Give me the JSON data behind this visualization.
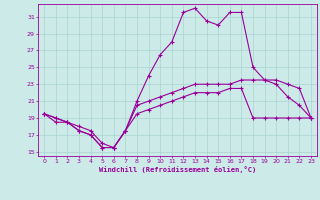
{
  "xlabel": "Windchill (Refroidissement éolien,°C)",
  "bg_color": "#cceae8",
  "line_color": "#990099",
  "grid_color": "#aad4d0",
  "xlim": [
    -0.5,
    23.5
  ],
  "ylim": [
    14.5,
    32.5
  ],
  "xticks": [
    0,
    1,
    2,
    3,
    4,
    5,
    6,
    7,
    8,
    9,
    10,
    11,
    12,
    13,
    14,
    15,
    16,
    17,
    18,
    19,
    20,
    21,
    22,
    23
  ],
  "yticks": [
    15,
    17,
    19,
    21,
    23,
    25,
    27,
    29,
    31
  ],
  "series1_x": [
    0,
    1,
    2,
    3,
    4,
    5,
    6,
    7,
    8,
    9,
    10,
    11,
    12,
    13,
    14,
    15,
    16,
    17,
    18,
    19,
    20,
    21,
    22,
    23
  ],
  "series1_y": [
    19.5,
    19.0,
    18.5,
    17.5,
    17.0,
    15.5,
    15.5,
    17.5,
    21.0,
    24.0,
    26.5,
    28.0,
    31.5,
    32.0,
    30.5,
    30.0,
    31.5,
    31.5,
    25.0,
    23.5,
    23.0,
    21.5,
    20.5,
    19.0
  ],
  "series2_x": [
    0,
    1,
    2,
    3,
    4,
    5,
    6,
    7,
    8,
    9,
    10,
    11,
    12,
    13,
    14,
    15,
    16,
    17,
    18,
    19,
    20,
    21,
    22,
    23
  ],
  "series2_y": [
    19.5,
    19.0,
    18.5,
    17.5,
    17.0,
    15.5,
    15.5,
    17.5,
    20.5,
    21.0,
    21.5,
    22.0,
    22.5,
    23.0,
    23.0,
    23.0,
    23.0,
    23.5,
    23.5,
    23.5,
    23.5,
    23.0,
    22.5,
    19.0
  ],
  "series3_x": [
    0,
    1,
    2,
    3,
    4,
    5,
    6,
    7,
    8,
    9,
    10,
    11,
    12,
    13,
    14,
    15,
    16,
    17,
    18,
    19,
    20,
    21,
    22,
    23
  ],
  "series3_y": [
    19.5,
    18.5,
    18.5,
    18.0,
    17.5,
    16.0,
    15.5,
    17.5,
    19.5,
    20.0,
    20.5,
    21.0,
    21.5,
    22.0,
    22.0,
    22.0,
    22.5,
    22.5,
    19.0,
    19.0,
    19.0,
    19.0,
    19.0,
    19.0
  ]
}
